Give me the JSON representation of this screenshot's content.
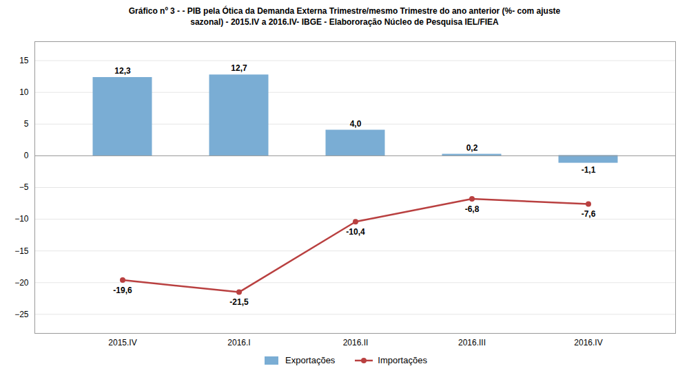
{
  "chart_data": {
    "type": "bar",
    "title": "Gráfico nº 3 - - PIB pela Ótica da Demanda Externa Trimestre/mesmo Trimestre do ano anterior (%- com ajuste",
    "subtitle": "sazonal) - 2015.IV a 2016.IV- IBGE - Elabororação Núcleo de Pesquisa IEL/FIEA",
    "categories": [
      "2015.IV",
      "2016.I",
      "2016.II",
      "2016.III",
      "2016.IV"
    ],
    "series": [
      {
        "name": "Exportações",
        "type": "bar",
        "color": "#7aadd4",
        "values": [
          12.3,
          12.7,
          4.0,
          0.2,
          -1.1
        ],
        "value_labels": [
          "12,3",
          "12,7",
          "4,0",
          "0,2",
          "-1,1"
        ]
      },
      {
        "name": "Importações",
        "type": "line",
        "color": "#b94040",
        "marker": "circle",
        "values": [
          -19.6,
          -21.5,
          -10.4,
          -6.8,
          -7.6
        ],
        "value_labels": [
          "-19,6",
          "-21,5",
          "-10,4",
          "-6,8",
          "-7,6"
        ]
      }
    ],
    "ylim": [
      -28,
      18
    ],
    "yticks": [
      -25,
      -20,
      -15,
      -10,
      -5,
      0,
      5,
      10,
      15
    ],
    "grid": true,
    "legend": "bottom",
    "data_labels": true
  }
}
